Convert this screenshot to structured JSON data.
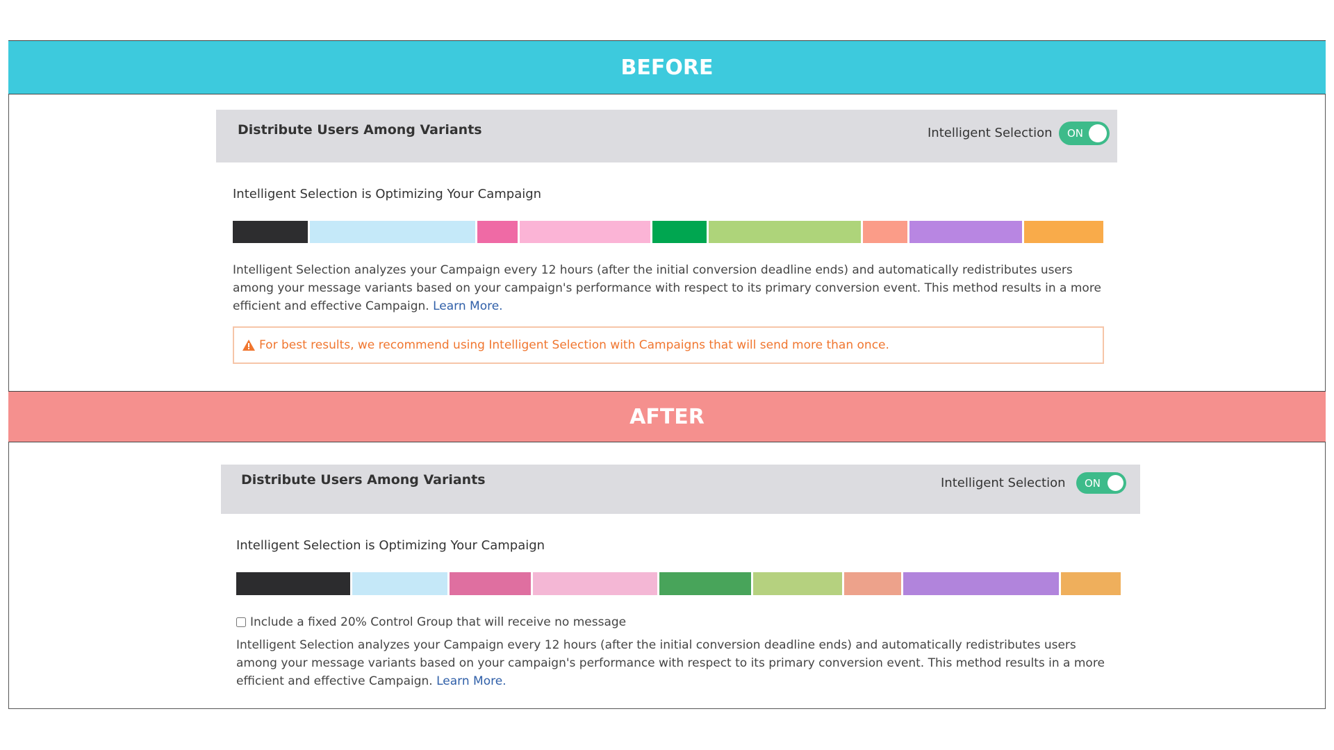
{
  "before": {
    "header": "BEFORE",
    "panel": {
      "title": "Distribute Users Among Variants",
      "toggle_label": "Intelligent Selection",
      "toggle_state": "ON"
    },
    "subtitle": "Intelligent Selection is Optimizing Your Campaign",
    "allocation": [
      {
        "color": "#2d2d2f",
        "share": 8.8
      },
      {
        "color": "#c5e9f9",
        "share": 19.4
      },
      {
        "color": "#ef6aa5",
        "share": 4.7
      },
      {
        "color": "#fbb4d6",
        "share": 15.3
      },
      {
        "color": "#00a650",
        "share": 6.4
      },
      {
        "color": "#aed47a",
        "share": 17.8
      },
      {
        "color": "#fb9c88",
        "share": 5.2
      },
      {
        "color": "#b886e2",
        "share": 13.2
      },
      {
        "color": "#f9ab4a",
        "share": 9.3
      }
    ],
    "description": "Intelligent Selection analyzes your Campaign every 12 hours (after the initial conversion deadline ends) and automatically redistributes users among your message variants based on your campaign's performance with respect to its primary conversion event. This method results in a more efficient and effective Campaign.",
    "link": "Learn More.",
    "warning": "For best results, we recommend using Intelligent Selection with Campaigns that will send more than once."
  },
  "after": {
    "header": "AFTER",
    "panel": {
      "title": "Distribute Users Among Variants",
      "toggle_label": "Intelligent Selection",
      "toggle_state": "ON"
    },
    "subtitle": "Intelligent Selection is Optimizing Your Campaign",
    "allocation": [
      {
        "color": "#2c2c2e",
        "share": 13.1
      },
      {
        "color": "#c5e8f8",
        "share": 11.0
      },
      {
        "color": "#df6fa0",
        "share": 9.4
      },
      {
        "color": "#f4b7d5",
        "share": 14.3
      },
      {
        "color": "#48a45a",
        "share": 10.6
      },
      {
        "color": "#b5d17f",
        "share": 10.2
      },
      {
        "color": "#eda28b",
        "share": 6.6
      },
      {
        "color": "#b184dc",
        "share": 17.9
      },
      {
        "color": "#efaf5c",
        "share": 6.9
      }
    ],
    "checkbox_label": "Include a fixed 20% Control Group that will receive no message",
    "description": "Intelligent Selection analyzes your Campaign every 12 hours (after the initial conversion deadline ends) and automatically redistributes users among your message variants based on your campaign's performance with respect to its primary conversion event. This method results in a more efficient and effective Campaign.",
    "link": "Learn More."
  }
}
